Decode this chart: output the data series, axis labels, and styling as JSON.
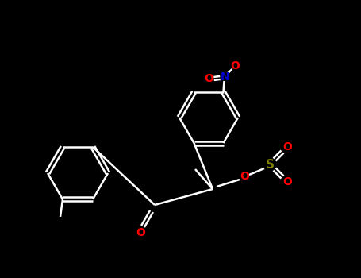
{
  "bg_color": "#000000",
  "bond_color": "#ffffff",
  "bond_width": 1.8,
  "figsize": [
    4.55,
    3.5
  ],
  "dpi": 100,
  "atoms": {
    "N": {
      "color": "#0000cd"
    },
    "O": {
      "color": "#ff0000"
    },
    "S": {
      "color": "#808000"
    }
  }
}
